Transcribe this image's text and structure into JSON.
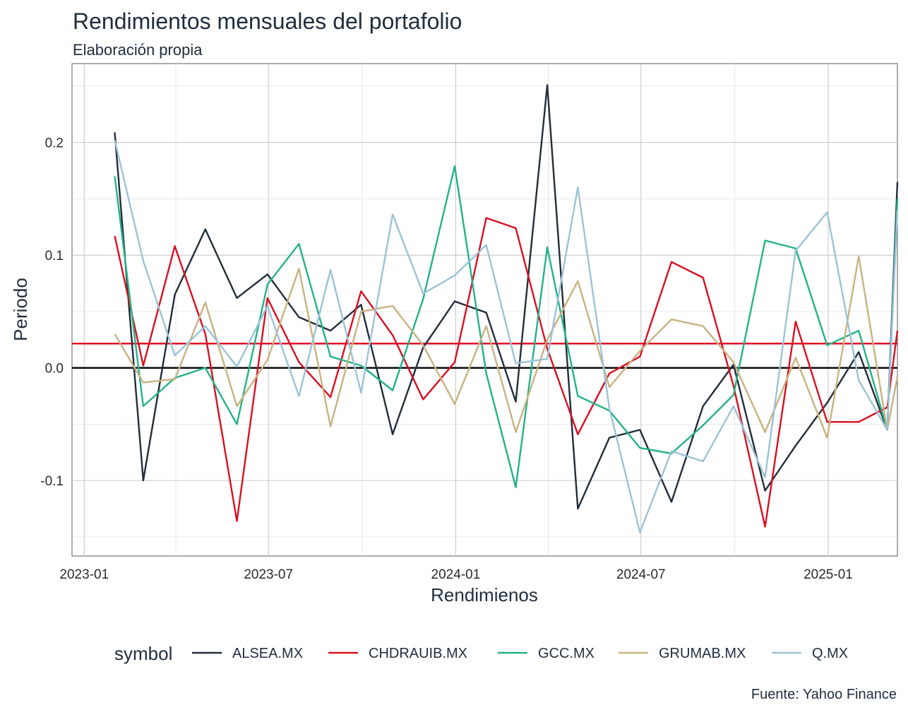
{
  "chart_data": {
    "type": "line",
    "title": "Rendimientos mensuales del portafolio",
    "subtitle": "Elaboración propia",
    "caption": "Fuente: Yahoo Finance",
    "xlabel": "Rendimienos",
    "ylabel": "Periodo",
    "legend_title": "symbol",
    "legend_position": "bottom",
    "grid": true,
    "xlim": [
      "2022-12-20",
      "2025-03-10"
    ],
    "ylim": [
      -0.167,
      0.27
    ],
    "x_ticks": [
      "2023-01",
      "2023-07",
      "2024-01",
      "2024-07",
      "2025-01"
    ],
    "y_ticks": [
      -0.1,
      0.0,
      0.1,
      0.2
    ],
    "y_tick_labels": [
      "-0.1",
      "0.0",
      "0.1",
      "0.2"
    ],
    "reference_lines": [
      {
        "y": 0.0,
        "color": "#000000"
      },
      {
        "y": 0.0215,
        "color": "#e2001a"
      }
    ],
    "x": [
      "2023-01-31",
      "2023-02-28",
      "2023-03-31",
      "2023-04-30",
      "2023-05-31",
      "2023-06-30",
      "2023-07-31",
      "2023-08-31",
      "2023-09-30",
      "2023-10-31",
      "2023-11-30",
      "2023-12-31",
      "2024-01-31",
      "2024-02-29",
      "2024-03-31",
      "2024-04-30",
      "2024-05-31",
      "2024-06-30",
      "2024-07-31",
      "2024-08-31",
      "2024-09-30",
      "2024-10-31",
      "2024-11-30",
      "2024-12-31",
      "2025-01-31",
      "2025-02-28",
      "2025-03-10"
    ],
    "series": [
      {
        "name": "ALSEA.MX",
        "color": "#222d3b",
        "values": [
          0.209,
          -0.1,
          0.065,
          0.123,
          0.062,
          0.083,
          0.045,
          0.033,
          0.056,
          -0.059,
          0.018,
          0.059,
          0.049,
          -0.03,
          0.251,
          -0.125,
          -0.062,
          -0.055,
          -0.119,
          -0.034,
          0.003,
          -0.109,
          -0.069,
          -0.031,
          0.014,
          -0.055,
          0.165
        ]
      },
      {
        "name": "CHDRAUIB.MX",
        "color": "#d90f22",
        "values": [
          0.117,
          0.002,
          0.108,
          0.03,
          -0.136,
          0.062,
          0.005,
          -0.026,
          0.068,
          0.029,
          -0.028,
          0.005,
          0.133,
          0.124,
          0.017,
          -0.059,
          -0.005,
          0.01,
          0.094,
          0.08,
          -0.016,
          -0.141,
          0.041,
          -0.048,
          -0.048,
          -0.035,
          0.033
        ]
      },
      {
        "name": "GCC.MX",
        "color": "#23b287",
        "values": [
          0.17,
          -0.034,
          -0.009,
          0.0,
          -0.05,
          0.074,
          0.11,
          0.01,
          0.002,
          -0.02,
          0.061,
          0.179,
          -0.005,
          -0.106,
          0.107,
          -0.025,
          -0.038,
          -0.071,
          -0.076,
          -0.051,
          -0.024,
          0.113,
          0.106,
          0.02,
          0.033,
          -0.055,
          0.15
        ]
      },
      {
        "name": "GRUMAB.MX",
        "color": "#c8b281",
        "values": [
          0.03,
          -0.013,
          -0.01,
          0.058,
          -0.034,
          0.007,
          0.088,
          -0.052,
          0.05,
          0.055,
          0.02,
          -0.032,
          0.037,
          -0.057,
          0.025,
          0.077,
          -0.017,
          0.015,
          0.043,
          0.037,
          0.005,
          -0.057,
          0.009,
          -0.062,
          0.099,
          -0.055,
          -0.008
        ]
      },
      {
        "name": "Q.MX",
        "color": "#9bc3d6",
        "values": [
          0.202,
          0.095,
          0.011,
          0.037,
          0.001,
          0.055,
          -0.025,
          0.087,
          -0.022,
          0.136,
          0.066,
          0.082,
          0.109,
          0.004,
          0.008,
          0.16,
          -0.036,
          -0.146,
          -0.074,
          -0.083,
          -0.034,
          -0.097,
          0.104,
          0.138,
          -0.011,
          -0.055,
          0.14
        ]
      }
    ]
  }
}
